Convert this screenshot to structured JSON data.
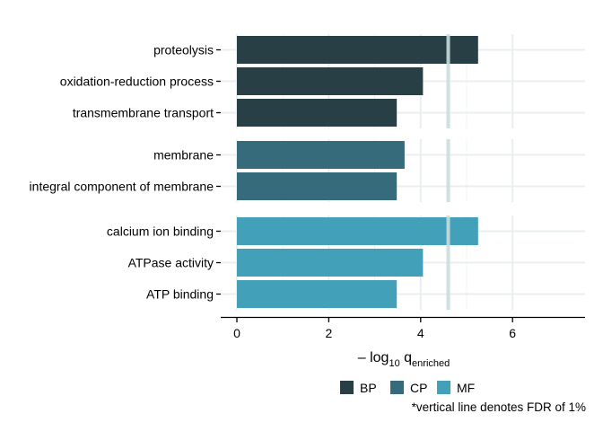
{
  "chart_data": {
    "type": "bar",
    "orientation": "horizontal",
    "groups": [
      {
        "name": "BP",
        "color": "#283f45",
        "categories": [
          "proteolysis",
          "oxidation-reduction process",
          "transmembrane transport"
        ],
        "values": [
          5.25,
          4.05,
          3.48
        ]
      },
      {
        "name": "CP",
        "color": "#356b7b",
        "categories": [
          "membrane",
          "integral component of membrane"
        ],
        "values": [
          3.65,
          3.48
        ]
      },
      {
        "name": "MF",
        "color": "#42a0b9",
        "categories": [
          "calcium ion binding",
          "ATPase activity",
          "ATP binding"
        ],
        "values": [
          5.25,
          4.05,
          3.48
        ]
      }
    ],
    "xlabel": {
      "prefix": "– log",
      "sub1": "10",
      "mid": " q",
      "sub2": "enriched"
    },
    "xlim": [
      -0.35,
      7.6
    ],
    "xticks": [
      0,
      2,
      4,
      6
    ],
    "ylabel": "",
    "title": "",
    "threshold": 4.6,
    "threshold_color": "#c8dde0",
    "grid": true,
    "legend": {
      "position": "bottom",
      "entries": [
        "BP",
        "CP",
        "MF"
      ]
    },
    "footnote": "*vertical line denotes FDR of 1%"
  }
}
